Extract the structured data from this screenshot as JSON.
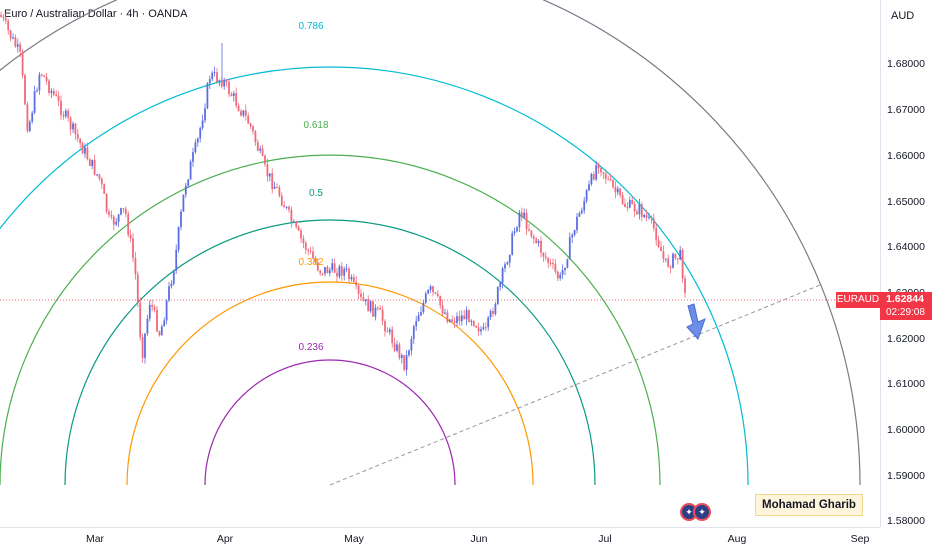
{
  "header": {
    "title": "Euro / Australian Dollar · 4h · OANDA"
  },
  "price_axis": {
    "currency": "AUD",
    "labels": [
      "1.68000",
      "1.67000",
      "1.66000",
      "1.65000",
      "1.64000",
      "1.63000",
      "1.62000",
      "1.61000",
      "1.60000",
      "1.59000",
      "1.58000"
    ]
  },
  "time_axis": {
    "labels": [
      "Mar",
      "Apr",
      "May",
      "Jun",
      "Jul",
      "Aug",
      "Sep"
    ]
  },
  "fib_levels": [
    {
      "label": "0.236",
      "color": "#9c27b0"
    },
    {
      "label": "0.382",
      "color": "#ff9800"
    },
    {
      "label": "0.5",
      "color": "#089981"
    },
    {
      "label": "0.618",
      "color": "#4caf50"
    },
    {
      "label": "0.786",
      "color": "#00bcd4"
    }
  ],
  "outer_arc_color": "#787b86",
  "current": {
    "symbol": "EURAUD",
    "price": "1.62844",
    "countdown": "02:29:08",
    "color": "#f23645"
  },
  "author": "Mohamad Gharib",
  "candle_colors": {
    "up": "#5b6ee1",
    "down": "#ef6a7a"
  }
}
